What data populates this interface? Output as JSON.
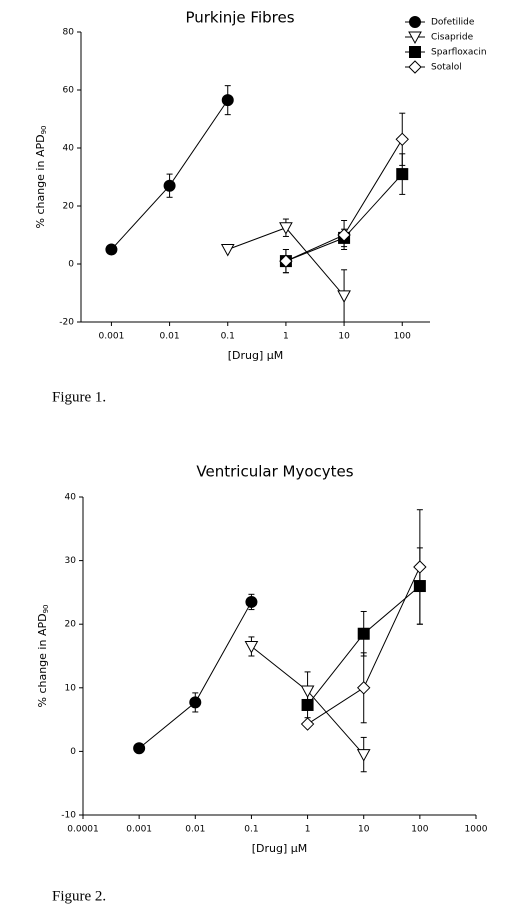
{
  "chart_data": [
    {
      "type": "scatter",
      "title": "Purkinje Fibres",
      "x_label": "[Drug] μM",
      "y_label": {
        "text": "% change in APD",
        "subscript": "90"
      },
      "log_x": true,
      "xlim": [
        0.0003,
        300
      ],
      "xticks": [
        0.001,
        0.01,
        0.1,
        1,
        10,
        100
      ],
      "ylim": [
        -20,
        80
      ],
      "yticks": [
        -20,
        0,
        20,
        40,
        60,
        80
      ],
      "legend": "upper right",
      "series": [
        {
          "name": "Dofetilide",
          "marker": "circle",
          "filled": true,
          "color": "#000000",
          "x": [
            0.001,
            0.01,
            0.1
          ],
          "values": [
            5,
            27,
            56.5
          ],
          "errors": [
            null,
            4,
            5
          ]
        },
        {
          "name": "Cisapride",
          "marker": "triangle-down",
          "filled": false,
          "color": "#000000",
          "x": [
            0.1,
            1,
            10
          ],
          "values": [
            5,
            12.5,
            -11
          ],
          "errors": [
            null,
            3,
            9
          ]
        },
        {
          "name": "Sparfloxacin",
          "marker": "square",
          "filled": true,
          "color": "#000000",
          "x": [
            1,
            10,
            100
          ],
          "values": [
            1,
            9,
            31
          ],
          "errors": [
            4,
            3,
            7
          ]
        },
        {
          "name": "Sotalol",
          "marker": "diamond",
          "filled": false,
          "color": "#000000",
          "x": [
            1,
            10,
            100
          ],
          "values": [
            1,
            10,
            43
          ],
          "errors": [
            4,
            5,
            9
          ]
        }
      ]
    },
    {
      "type": "scatter",
      "title": "Ventricular Myocytes",
      "x_label": "[Drug] μM",
      "y_label": {
        "text": "% change in APD",
        "subscript": "90"
      },
      "log_x": true,
      "xlim": [
        0.0001,
        1000
      ],
      "xticks": [
        0.0001,
        0.001,
        0.01,
        0.1,
        1,
        10,
        100,
        1000
      ],
      "ylim": [
        -10,
        40
      ],
      "yticks": [
        -10,
        0,
        10,
        20,
        30,
        40
      ],
      "series": [
        {
          "name": "Dofetilide",
          "marker": "circle",
          "filled": true,
          "color": "#000000",
          "x": [
            0.001,
            0.01,
            0.1
          ],
          "values": [
            0.5,
            7.7,
            23.5
          ],
          "errors": [
            null,
            1.5,
            1.2
          ]
        },
        {
          "name": "Cisapride",
          "marker": "triangle-down",
          "filled": false,
          "color": "#000000",
          "x": [
            0.1,
            1,
            10
          ],
          "values": [
            16.5,
            9.5,
            -0.5
          ],
          "errors": [
            1.5,
            3,
            2.7
          ]
        },
        {
          "name": "Sparfloxacin",
          "marker": "square",
          "filled": true,
          "color": "#000000",
          "x": [
            1,
            10,
            100
          ],
          "values": [
            7.3,
            18.5,
            26
          ],
          "errors": [
            2,
            3.5,
            6
          ]
        },
        {
          "name": "Sotalol",
          "marker": "diamond",
          "filled": false,
          "color": "#000000",
          "x": [
            1,
            10,
            100
          ],
          "values": [
            4.3,
            10,
            29
          ],
          "errors": [
            null,
            5.5,
            9
          ]
        }
      ]
    }
  ],
  "captions": [
    "Figure 1.",
    "Figure 2."
  ]
}
